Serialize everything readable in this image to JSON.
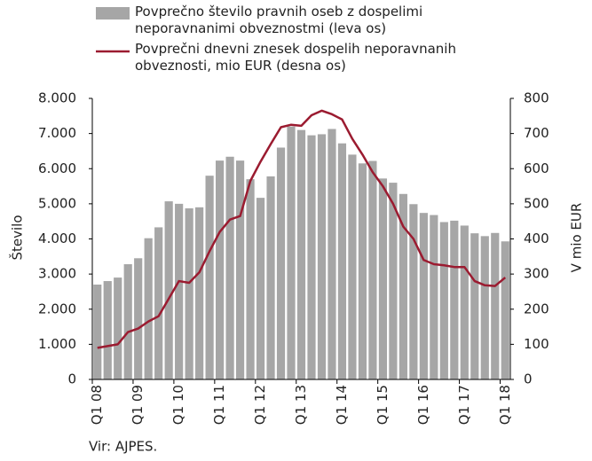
{
  "chart_data": {
    "type": "bar-line",
    "categories": [
      "Q1 08",
      null,
      null,
      null,
      "Q1 09",
      null,
      null,
      null,
      "Q1 10",
      null,
      null,
      null,
      "Q1 11",
      null,
      null,
      null,
      "Q1 12",
      null,
      null,
      null,
      "Q1 13",
      null,
      null,
      null,
      "Q1 14",
      null,
      null,
      null,
      "Q1 15",
      null,
      null,
      null,
      "Q1 16",
      null,
      null,
      null,
      "Q1 17",
      null,
      null,
      null,
      "Q1 18"
    ],
    "series": [
      {
        "name": "Povprečno število pravnih oseb z dospelimi neporavnanimi obveznostmi (leva os)",
        "type": "bar",
        "color": "#a6a6a6",
        "values": [
          2700,
          2800,
          2900,
          3280,
          3450,
          4020,
          4330,
          5070,
          5000,
          4870,
          4900,
          5800,
          6230,
          6340,
          6230,
          5700,
          5170,
          5780,
          6600,
          7200,
          7100,
          6950,
          6980,
          7130,
          6720,
          6400,
          6150,
          6220,
          5720,
          5600,
          5280,
          4990,
          4740,
          4680,
          4480,
          4520,
          4380,
          4160,
          4080,
          4170,
          3930
        ]
      },
      {
        "name": "Povprečni dnevni znesek dospelih neporavnanih obveznosti, mio EUR (desna os)",
        "type": "line",
        "axis": "y2",
        "color": "#9b1b30",
        "values": [
          90,
          95,
          100,
          135,
          145,
          165,
          180,
          230,
          280,
          275,
          305,
          365,
          420,
          455,
          465,
          565,
          620,
          670,
          718,
          725,
          722,
          752,
          765,
          755,
          740,
          685,
          640,
          590,
          550,
          500,
          435,
          400,
          340,
          328,
          325,
          320,
          320,
          280,
          268,
          266,
          290
        ]
      }
    ],
    "y_label": "Število",
    "y2_label": "V mio EUR",
    "source": "Vir: AJPES.",
    "ylim": [
      0,
      8000
    ],
    "yticks": [
      0,
      {
        "value": 1000,
        "label": "1.000"
      },
      {
        "value": 2000,
        "label": "2.000"
      },
      {
        "value": 3000,
        "label": "3.000"
      },
      {
        "value": 4000,
        "label": "4.000"
      },
      {
        "value": 5000,
        "label": "5.000"
      },
      {
        "value": 6000,
        "label": "6.000"
      },
      {
        "value": 7000,
        "label": "7.000"
      },
      {
        "value": 8000,
        "label": "8.000"
      }
    ],
    "y2lim": [
      0,
      800
    ],
    "y2ticks": [
      0,
      100,
      200,
      300,
      400,
      500,
      600,
      700,
      800
    ]
  }
}
